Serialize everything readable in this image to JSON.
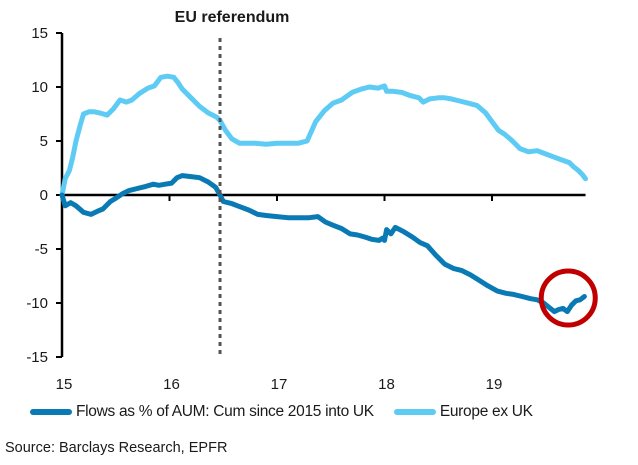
{
  "chart_data": {
    "type": "line",
    "title": "",
    "annotation": "EU referendum",
    "annotation_x": 16.47,
    "xlabel": "",
    "ylabel": "",
    "xlim": [
      15,
      19.87
    ],
    "ylim": [
      -15,
      15
    ],
    "x_ticks": [
      15,
      16,
      17,
      18,
      19
    ],
    "x_tick_labels": [
      "15",
      "16",
      "17",
      "18",
      "19"
    ],
    "y_ticks": [
      15,
      10,
      5,
      0,
      -5,
      -10,
      -15
    ],
    "y_tick_labels": [
      "15",
      "10",
      "5",
      "0",
      "-5",
      "-10",
      "-15"
    ],
    "grid": false,
    "legend_position": "bottom",
    "highlight_circle": {
      "x": 19.7,
      "y": -10.0,
      "color": "#c00000"
    },
    "series": [
      {
        "name": "Flows as % of AUM: Cum since 2015 into UK",
        "color": "#0a7ab5",
        "x": [
          15.0,
          15.03,
          15.08,
          15.13,
          15.2,
          15.27,
          15.33,
          15.38,
          15.45,
          15.5,
          15.56,
          15.62,
          15.7,
          15.78,
          15.85,
          15.9,
          15.96,
          16.02,
          16.07,
          16.12,
          16.2,
          16.28,
          16.36,
          16.43,
          16.47,
          16.5,
          16.58,
          16.66,
          16.74,
          16.82,
          16.9,
          17.0,
          17.1,
          17.2,
          17.3,
          17.38,
          17.45,
          17.52,
          17.6,
          17.68,
          17.75,
          17.82,
          17.88,
          17.95,
          17.98,
          18.0,
          18.02,
          18.06,
          18.1,
          18.18,
          18.26,
          18.33,
          18.4,
          18.48,
          18.56,
          18.64,
          18.72,
          18.8,
          18.88,
          18.96,
          19.05,
          19.13,
          19.2,
          19.28,
          19.36,
          19.42,
          19.48,
          19.53,
          19.58,
          19.62,
          19.66,
          19.7,
          19.74,
          19.78,
          19.82,
          19.86
        ],
        "y": [
          0.0,
          -1.0,
          -0.7,
          -1.0,
          -1.6,
          -1.8,
          -1.5,
          -1.3,
          -0.6,
          -0.3,
          0.1,
          0.4,
          0.6,
          0.8,
          1.0,
          0.9,
          1.0,
          1.1,
          1.6,
          1.8,
          1.7,
          1.6,
          1.2,
          0.7,
          0.0,
          -0.6,
          -0.8,
          -1.1,
          -1.4,
          -1.8,
          -1.9,
          -2.0,
          -2.1,
          -2.1,
          -2.1,
          -2.0,
          -2.5,
          -2.8,
          -3.1,
          -3.6,
          -3.7,
          -3.9,
          -4.1,
          -4.2,
          -4.0,
          -4.2,
          -3.2,
          -3.6,
          -3.0,
          -3.4,
          -3.9,
          -4.4,
          -4.7,
          -5.6,
          -6.4,
          -6.8,
          -7.0,
          -7.4,
          -7.9,
          -8.4,
          -8.9,
          -9.1,
          -9.2,
          -9.4,
          -9.6,
          -9.7,
          -10.0,
          -10.4,
          -10.8,
          -10.6,
          -10.5,
          -10.8,
          -10.2,
          -9.8,
          -9.7,
          -9.4
        ]
      },
      {
        "name": "Europe ex UK",
        "color": "#5ecbf5",
        "x": [
          15.0,
          15.03,
          15.07,
          15.1,
          15.13,
          15.17,
          15.2,
          15.25,
          15.3,
          15.35,
          15.42,
          15.48,
          15.54,
          15.6,
          15.65,
          15.72,
          15.8,
          15.86,
          15.92,
          15.98,
          16.04,
          16.08,
          16.12,
          16.2,
          16.28,
          16.36,
          16.44,
          16.47,
          16.52,
          16.58,
          16.65,
          16.72,
          16.8,
          16.9,
          17.0,
          17.1,
          17.2,
          17.28,
          17.36,
          17.44,
          17.52,
          17.6,
          17.7,
          17.78,
          17.86,
          17.94,
          18.0,
          18.02,
          18.08,
          18.16,
          18.24,
          18.32,
          18.36,
          18.42,
          18.5,
          18.56,
          18.62,
          18.7,
          18.78,
          18.86,
          18.94,
          19.0,
          19.06,
          19.12,
          19.18,
          19.26,
          19.34,
          19.42,
          19.5,
          19.58,
          19.66,
          19.72,
          19.76,
          19.8,
          19.84,
          19.87
        ],
        "y": [
          0.0,
          1.5,
          2.3,
          3.5,
          5.0,
          6.5,
          7.5,
          7.7,
          7.7,
          7.6,
          7.4,
          8.0,
          8.8,
          8.6,
          8.8,
          9.4,
          9.9,
          10.1,
          10.9,
          11.0,
          10.9,
          10.4,
          9.8,
          9.0,
          8.2,
          7.6,
          7.2,
          6.9,
          6.0,
          5.2,
          4.8,
          4.8,
          4.8,
          4.7,
          4.8,
          4.8,
          4.8,
          5.0,
          6.8,
          7.8,
          8.5,
          8.8,
          9.5,
          9.8,
          10.0,
          9.9,
          10.1,
          9.6,
          9.6,
          9.5,
          9.2,
          9.0,
          8.6,
          8.9,
          9.0,
          9.0,
          8.9,
          8.7,
          8.5,
          8.3,
          7.6,
          6.8,
          6.0,
          5.6,
          5.1,
          4.3,
          4.0,
          4.1,
          3.8,
          3.5,
          3.2,
          3.0,
          2.6,
          2.3,
          1.9,
          1.5
        ]
      }
    ]
  },
  "legend": {
    "items": [
      {
        "label": "Flows as % of AUM: Cum since 2015 into UK",
        "color": "#0a7ab5"
      },
      {
        "label": "Europe ex UK",
        "color": "#5ecbf5"
      }
    ]
  },
  "source": "Source: Barclays Research, EPFR"
}
